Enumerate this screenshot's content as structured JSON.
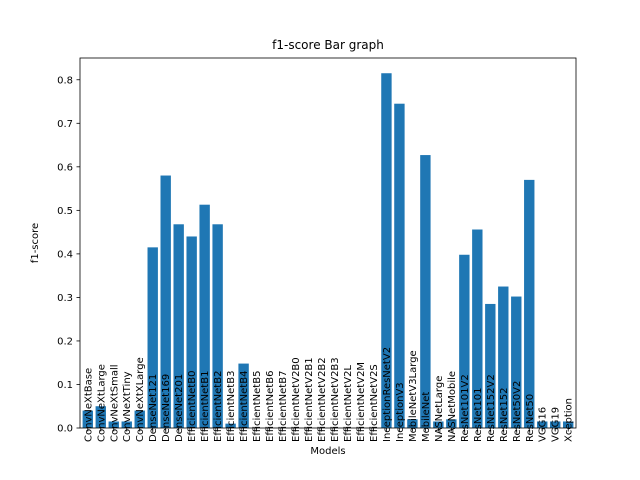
{
  "chart_data": {
    "type": "bar",
    "title": "f1-score Bar graph",
    "xlabel": "Models",
    "ylabel": "f1-score",
    "ylim": [
      0,
      0.85
    ],
    "yticks": [
      "0.0",
      "0.1",
      "0.2",
      "0.3",
      "0.4",
      "0.5",
      "0.6",
      "0.7",
      "0.8"
    ],
    "bar_color": "#1f77b4",
    "grid": false,
    "categories": [
      "ConvNeXtBase",
      "ConvNeXtLarge",
      "ConvNeXtSmall",
      "ConvNeXtTiny",
      "ConvNeXtXLarge",
      "DenseNet121",
      "DenseNet169",
      "DenseNet201",
      "EfficientNetB0",
      "EfficientNetB1",
      "EfficientNetB2",
      "EfficientNetB3",
      "EfficientNetB4",
      "EfficientNetB5",
      "EfficientNetB6",
      "EfficientNetB7",
      "EfficientNetV2B0",
      "EfficientNetV2B1",
      "EfficientNetV2B2",
      "EfficientNetV2B3",
      "EfficientNetV2L",
      "EfficientNetV2M",
      "EfficientNetV2S",
      "InceptionResNetV2",
      "InceptionV3",
      "MobileNetV3Large",
      "MobileNet",
      "NASNetLarge",
      "NASNetMobile",
      "ResNet101V2",
      "ResNet101",
      "ResNet152V2",
      "ResNet152",
      "ResNet50V2",
      "ResNet50",
      "VGG16",
      "VGG19",
      "Xception"
    ],
    "values": [
      0.04,
      0.05,
      0.015,
      0.015,
      0.04,
      0.415,
      0.58,
      0.468,
      0.44,
      0.513,
      0.468,
      0.01,
      0.148,
      0.0,
      0.0,
      0.0,
      0.0,
      0.0,
      0.0,
      0.0,
      0.0,
      0.0,
      0.0,
      0.815,
      0.745,
      0.02,
      0.627,
      0.015,
      0.02,
      0.398,
      0.456,
      0.285,
      0.325,
      0.302,
      0.57,
      0.015,
      0.015,
      0.015
    ]
  }
}
